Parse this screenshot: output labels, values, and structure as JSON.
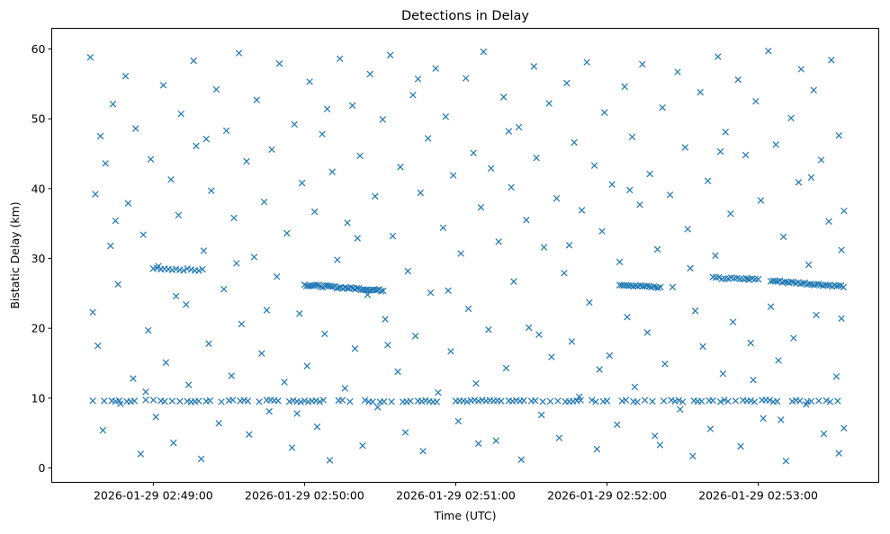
{
  "chart_data": {
    "type": "scatter",
    "title": "Detections in Delay",
    "xlabel": "Time (UTC)",
    "ylabel": "Bistatic Delay (km)",
    "x_units": "seconds after 2026-01-29 02:48:00",
    "xlim": [
      19.7,
      347.8
    ],
    "ylim": [
      -2.05,
      62.95
    ],
    "grid": false,
    "marker": "x",
    "color": "#1f77b4",
    "x_ticks": [
      {
        "value": 60,
        "label": "2026-01-29 02:49:00"
      },
      {
        "value": 120,
        "label": "2026-01-29 02:50:00"
      },
      {
        "value": 180,
        "label": "2026-01-29 02:51:00"
      },
      {
        "value": 240,
        "label": "2026-01-29 02:52:00"
      },
      {
        "value": 300,
        "label": "2026-01-29 02:53:00"
      }
    ],
    "y_ticks": [
      {
        "value": 0,
        "label": "0"
      },
      {
        "value": 10,
        "label": "10"
      },
      {
        "value": 20,
        "label": "20"
      },
      {
        "value": 30,
        "label": "30"
      },
      {
        "value": 40,
        "label": "40"
      },
      {
        "value": 50,
        "label": "50"
      },
      {
        "value": 60,
        "label": "60"
      }
    ],
    "tracks": [
      {
        "t_start": 36,
        "t_end": 334,
        "d_start": 9.6,
        "d_end": 9.6,
        "step": 1.5
      },
      {
        "t_start": 120,
        "t_end": 152,
        "d_start": 26.2,
        "d_end": 25.4,
        "step": 0.8
      },
      {
        "t_start": 245,
        "t_end": 262,
        "d_start": 26.3,
        "d_end": 25.8,
        "step": 0.9
      },
      {
        "t_start": 305,
        "t_end": 334,
        "d_start": 26.8,
        "d_end": 26.0,
        "step": 0.9
      },
      {
        "t_start": 282,
        "t_end": 300,
        "d_start": 27.2,
        "d_end": 27.0,
        "step": 1.2
      },
      {
        "t_start": 60,
        "t_end": 80,
        "d_start": 28.6,
        "d_end": 28.3,
        "step": 1.5
      }
    ],
    "points": [
      [
        35,
        58.8
      ],
      [
        36,
        22.3
      ],
      [
        37,
        39.2
      ],
      [
        38,
        17.5
      ],
      [
        40,
        5.4
      ],
      [
        41,
        43.6
      ],
      [
        43,
        31.8
      ],
      [
        44,
        52.1
      ],
      [
        46,
        26.3
      ],
      [
        47,
        9.2
      ],
      [
        49,
        56.1
      ],
      [
        50,
        37.9
      ],
      [
        52,
        12.8
      ],
      [
        53,
        48.6
      ],
      [
        55,
        2.0
      ],
      [
        56,
        33.4
      ],
      [
        58,
        19.7
      ],
      [
        59,
        44.2
      ],
      [
        61,
        7.3
      ],
      [
        62,
        28.9
      ],
      [
        64,
        54.8
      ],
      [
        65,
        15.1
      ],
      [
        67,
        41.3
      ],
      [
        68,
        3.6
      ],
      [
        70,
        36.2
      ],
      [
        71,
        50.7
      ],
      [
        73,
        23.4
      ],
      [
        74,
        11.9
      ],
      [
        76,
        58.3
      ],
      [
        77,
        46.1
      ],
      [
        79,
        1.3
      ],
      [
        80,
        31.1
      ],
      [
        82,
        17.8
      ],
      [
        83,
        39.7
      ],
      [
        85,
        54.2
      ],
      [
        86,
        6.4
      ],
      [
        88,
        25.6
      ],
      [
        89,
        48.3
      ],
      [
        91,
        13.2
      ],
      [
        92,
        35.8
      ],
      [
        94,
        59.4
      ],
      [
        95,
        20.6
      ],
      [
        97,
        43.9
      ],
      [
        98,
        4.8
      ],
      [
        100,
        30.2
      ],
      [
        101,
        52.7
      ],
      [
        103,
        16.4
      ],
      [
        104,
        38.1
      ],
      [
        106,
        8.1
      ],
      [
        107,
        45.6
      ],
      [
        109,
        27.4
      ],
      [
        110,
        57.9
      ],
      [
        112,
        12.3
      ],
      [
        113,
        33.6
      ],
      [
        115,
        2.9
      ],
      [
        116,
        49.2
      ],
      [
        118,
        22.1
      ],
      [
        119,
        40.8
      ],
      [
        121,
        14.6
      ],
      [
        122,
        55.3
      ],
      [
        124,
        36.7
      ],
      [
        125,
        5.9
      ],
      [
        127,
        47.8
      ],
      [
        128,
        19.2
      ],
      [
        130,
        1.1
      ],
      [
        131,
        42.4
      ],
      [
        133,
        29.8
      ],
      [
        134,
        58.6
      ],
      [
        136,
        11.4
      ],
      [
        137,
        35.1
      ],
      [
        139,
        51.9
      ],
      [
        140,
        17.1
      ],
      [
        142,
        44.7
      ],
      [
        143,
        3.2
      ],
      [
        145,
        24.8
      ],
      [
        146,
        56.4
      ],
      [
        148,
        38.9
      ],
      [
        149,
        8.7
      ],
      [
        151,
        49.9
      ],
      [
        152,
        21.3
      ],
      [
        154,
        59.1
      ],
      [
        155,
        33.2
      ],
      [
        157,
        13.8
      ],
      [
        158,
        43.1
      ],
      [
        160,
        5.1
      ],
      [
        161,
        28.2
      ],
      [
        163,
        53.4
      ],
      [
        164,
        18.9
      ],
      [
        166,
        39.4
      ],
      [
        167,
        2.4
      ],
      [
        169,
        47.2
      ],
      [
        170,
        25.1
      ],
      [
        172,
        57.2
      ],
      [
        173,
        10.8
      ],
      [
        175,
        34.4
      ],
      [
        176,
        50.3
      ],
      [
        178,
        16.7
      ],
      [
        179,
        41.9
      ],
      [
        181,
        6.7
      ],
      [
        182,
        30.7
      ],
      [
        184,
        55.8
      ],
      [
        185,
        22.8
      ],
      [
        187,
        45.1
      ],
      [
        188,
        12.1
      ],
      [
        190,
        37.3
      ],
      [
        191,
        59.6
      ],
      [
        193,
        19.8
      ],
      [
        194,
        42.9
      ],
      [
        196,
        3.9
      ],
      [
        197,
        32.4
      ],
      [
        199,
        53.1
      ],
      [
        200,
        14.3
      ],
      [
        202,
        40.2
      ],
      [
        203,
        26.7
      ],
      [
        205,
        48.8
      ],
      [
        206,
        1.2
      ],
      [
        208,
        35.5
      ],
      [
        209,
        20.1
      ],
      [
        211,
        57.5
      ],
      [
        212,
        44.4
      ],
      [
        214,
        7.6
      ],
      [
        215,
        31.6
      ],
      [
        217,
        52.2
      ],
      [
        218,
        15.9
      ],
      [
        220,
        38.6
      ],
      [
        221,
        4.3
      ],
      [
        223,
        27.9
      ],
      [
        224,
        55.1
      ],
      [
        226,
        18.1
      ],
      [
        227,
        46.6
      ],
      [
        229,
        10.2
      ],
      [
        230,
        36.9
      ],
      [
        232,
        58.1
      ],
      [
        233,
        23.7
      ],
      [
        235,
        43.3
      ],
      [
        236,
        2.7
      ],
      [
        238,
        33.9
      ],
      [
        239,
        50.9
      ],
      [
        241,
        16.1
      ],
      [
        242,
        40.6
      ],
      [
        244,
        6.2
      ],
      [
        245,
        29.5
      ],
      [
        247,
        54.6
      ],
      [
        248,
        21.6
      ],
      [
        250,
        47.4
      ],
      [
        251,
        11.6
      ],
      [
        253,
        37.7
      ],
      [
        254,
        57.8
      ],
      [
        256,
        19.4
      ],
      [
        257,
        42.1
      ],
      [
        259,
        4.6
      ],
      [
        260,
        31.3
      ],
      [
        262,
        51.6
      ],
      [
        263,
        14.9
      ],
      [
        265,
        39.1
      ],
      [
        266,
        25.9
      ],
      [
        268,
        56.7
      ],
      [
        269,
        8.4
      ],
      [
        271,
        45.9
      ],
      [
        272,
        34.2
      ],
      [
        274,
        1.7
      ],
      [
        275,
        22.5
      ],
      [
        277,
        53.8
      ],
      [
        278,
        17.4
      ],
      [
        280,
        41.1
      ],
      [
        281,
        5.6
      ],
      [
        283,
        30.4
      ],
      [
        284,
        58.9
      ],
      [
        286,
        13.5
      ],
      [
        287,
        48.1
      ],
      [
        289,
        36.4
      ],
      [
        290,
        20.9
      ],
      [
        292,
        55.6
      ],
      [
        293,
        3.1
      ],
      [
        295,
        44.8
      ],
      [
        296,
        27.1
      ],
      [
        298,
        12.6
      ],
      [
        299,
        52.5
      ],
      [
        301,
        38.3
      ],
      [
        302,
        7.1
      ],
      [
        304,
        59.7
      ],
      [
        305,
        23.1
      ],
      [
        307,
        46.3
      ],
      [
        308,
        15.4
      ],
      [
        310,
        33.1
      ],
      [
        311,
        1.0
      ],
      [
        313,
        50.1
      ],
      [
        314,
        18.6
      ],
      [
        316,
        40.9
      ],
      [
        317,
        57.1
      ],
      [
        319,
        9.1
      ],
      [
        320,
        29.1
      ],
      [
        322,
        54.1
      ],
      [
        323,
        21.9
      ],
      [
        325,
        44.1
      ],
      [
        326,
        4.9
      ],
      [
        328,
        35.3
      ],
      [
        329,
        58.4
      ],
      [
        331,
        13.1
      ],
      [
        332,
        47.6
      ],
      [
        333,
        21.4
      ],
      [
        334,
        36.8
      ],
      [
        334,
        5.7
      ],
      [
        333,
        31.2
      ],
      [
        332,
        2.1
      ],
      [
        39,
        47.5
      ],
      [
        45,
        35.4
      ],
      [
        57,
        10.9
      ],
      [
        69,
        24.6
      ],
      [
        81,
        47.1
      ],
      [
        93,
        29.3
      ],
      [
        105,
        22.6
      ],
      [
        117,
        7.8
      ],
      [
        129,
        51.4
      ],
      [
        141,
        32.9
      ],
      [
        153,
        17.6
      ],
      [
        165,
        55.7
      ],
      [
        177,
        25.4
      ],
      [
        189,
        3.5
      ],
      [
        201,
        48.2
      ],
      [
        213,
        19.1
      ],
      [
        225,
        31.9
      ],
      [
        237,
        14.1
      ],
      [
        249,
        39.8
      ],
      [
        261,
        3.3
      ],
      [
        273,
        28.6
      ],
      [
        285,
        45.3
      ],
      [
        297,
        17.9
      ],
      [
        309,
        6.9
      ],
      [
        321,
        41.6
      ]
    ]
  }
}
